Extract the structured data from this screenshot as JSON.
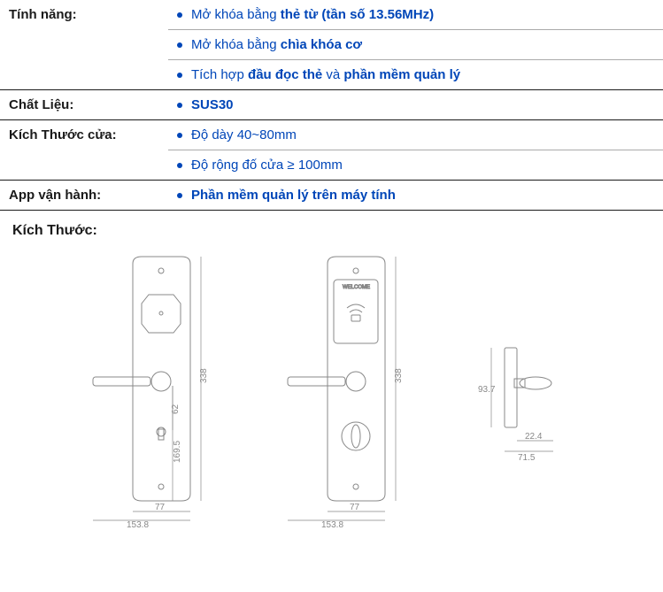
{
  "rows": [
    {
      "label": "Tính năng:",
      "values": [
        {
          "pre": "Mở khóa bằng ",
          "bold": "thẻ từ (tần số 13.56MHz)",
          "post": ""
        },
        {
          "pre": "Mở khóa bằng ",
          "bold": "chìa khóa cơ",
          "post": ""
        },
        {
          "pre": "Tích hợp ",
          "bold": "đầu đọc thẻ",
          "post": " và ",
          "bold2": "phần mềm quản lý"
        }
      ]
    },
    {
      "label": "Chất Liệu:",
      "values": [
        {
          "pre": "",
          "bold": "SUS30",
          "post": ""
        }
      ]
    },
    {
      "label": "Kích Thước cửa:",
      "values": [
        {
          "pre": "Độ dày 40~80mm",
          "bold": "",
          "post": ""
        },
        {
          "pre": "Độ rộng đố cửa ≥ 100mm",
          "bold": "",
          "post": ""
        }
      ]
    },
    {
      "label": "App vận hành:",
      "values": [
        {
          "pre": "",
          "bold": "Phần mềm quản lý trên máy tính",
          "post": ""
        }
      ]
    }
  ],
  "dimensions_title": "Kích Thước:",
  "diagram": {
    "plate_width": 77,
    "overall_width": 153.8,
    "plate_height": 338,
    "handle_offset_upper": 62,
    "handle_offset_lower": 169.5,
    "side_height": 93.7,
    "side_depth": 22.4,
    "side_total": 71.5,
    "welcome_label": "WELCOME",
    "colors": {
      "stroke": "#888888",
      "dim_text": "#888888",
      "background": "#ffffff"
    },
    "fontsize_dim": 10
  }
}
